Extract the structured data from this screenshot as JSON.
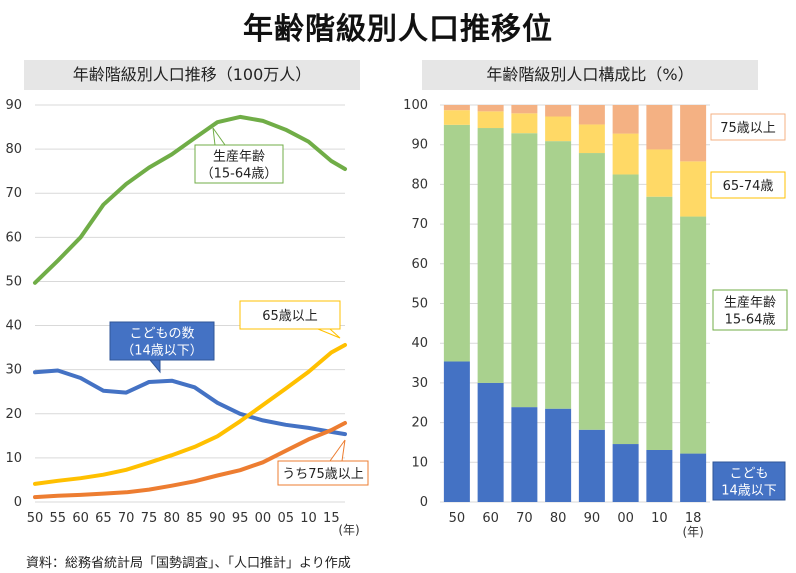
{
  "title": "年齢階級別人口推移位",
  "source": "資料：総務省統計局「国勢調査」、「人口推計」より作成",
  "chart_data": [
    {
      "type": "line",
      "title": "年齢階級別人口推移（100万人）",
      "ylim": [
        0,
        90
      ],
      "yticks": [
        0,
        10,
        20,
        30,
        40,
        50,
        60,
        70,
        80,
        90
      ],
      "xlim": [
        1950,
        2018
      ],
      "xtick_values": [
        1950,
        1955,
        1960,
        1965,
        1970,
        1975,
        1980,
        1985,
        1990,
        1995,
        2000,
        2005,
        2010,
        2015
      ],
      "xtick_labels": [
        "50",
        "55",
        "60",
        "65",
        "70",
        "75",
        "80",
        "85",
        "90",
        "95",
        "00",
        "05",
        "10",
        "15"
      ],
      "xunit": "(年)",
      "grid": true,
      "x": [
        1950,
        1955,
        1960,
        1965,
        1970,
        1975,
        1980,
        1985,
        1990,
        1995,
        2000,
        2005,
        2010,
        2015,
        2018
      ],
      "series": [
        {
          "name": "生産年齢（15-64歳）",
          "color": "#70ad47",
          "values": [
            49.7,
            54.7,
            60.0,
            67.4,
            72.1,
            75.8,
            78.8,
            82.5,
            86.1,
            87.3,
            86.4,
            84.4,
            81.7,
            77.3,
            75.5
          ]
        },
        {
          "name": "こどもの数（14歳以下）",
          "color": "#4472c4",
          "values": [
            29.4,
            29.8,
            28.1,
            25.2,
            24.8,
            27.2,
            27.5,
            26.0,
            22.5,
            20.0,
            18.5,
            17.5,
            16.8,
            15.9,
            15.4
          ]
        },
        {
          "name": "65歳以上",
          "color": "#ffc000",
          "values": [
            4.1,
            4.8,
            5.4,
            6.2,
            7.3,
            8.9,
            10.6,
            12.5,
            14.9,
            18.3,
            22.0,
            25.7,
            29.5,
            33.9,
            35.6
          ]
        },
        {
          "name": "うち75歳以上",
          "color": "#ed7d31",
          "values": [
            1.1,
            1.4,
            1.6,
            1.9,
            2.2,
            2.8,
            3.7,
            4.7,
            6.0,
            7.2,
            9.0,
            11.6,
            14.2,
            16.3,
            17.9
          ]
        }
      ],
      "callouts": [
        {
          "series": 0,
          "lines": [
            "生産年齢",
            "（15-64歳）"
          ]
        },
        {
          "series": 1,
          "lines": [
            "こどもの数",
            "（14歳以下）"
          ]
        },
        {
          "series": 2,
          "lines": [
            "65歳以上"
          ]
        },
        {
          "series": 3,
          "lines": [
            "うち75歳以上"
          ]
        }
      ]
    },
    {
      "type": "bar",
      "stacked": true,
      "title": "年齢階級別人口構成比（%）",
      "categories": [
        "50",
        "60",
        "70",
        "80",
        "90",
        "00",
        "10",
        "18"
      ],
      "xunit": "(年)",
      "ylim": [
        0,
        100
      ],
      "yticks": [
        0,
        10,
        20,
        30,
        40,
        50,
        60,
        70,
        80,
        90,
        100
      ],
      "grid": true,
      "series": [
        {
          "name": "こども 14歳以下",
          "color": "#4472c4",
          "values": [
            35.4,
            30.0,
            23.9,
            23.5,
            18.2,
            14.6,
            13.1,
            12.2
          ]
        },
        {
          "name": "生産年齢 15-64歳",
          "color": "#a9d18e",
          "values": [
            59.6,
            64.2,
            69.0,
            67.4,
            69.7,
            67.9,
            63.8,
            59.7
          ]
        },
        {
          "name": "65-74歳",
          "color": "#ffd966",
          "values": [
            3.7,
            4.2,
            5.0,
            6.2,
            7.2,
            10.3,
            11.9,
            13.9
          ]
        },
        {
          "name": "75歳以上",
          "color": "#f4b183",
          "values": [
            1.3,
            1.6,
            2.1,
            2.9,
            4.9,
            7.2,
            11.2,
            14.2
          ]
        }
      ],
      "legend_labels": [
        {
          "series": 3,
          "lines": [
            "75歳以上"
          ]
        },
        {
          "series": 2,
          "lines": [
            "65-74歳"
          ]
        },
        {
          "series": 1,
          "lines": [
            "生産年齢",
            "15-64歳"
          ]
        },
        {
          "series": 0,
          "lines": [
            "こども",
            "14歳以下"
          ]
        }
      ]
    }
  ]
}
